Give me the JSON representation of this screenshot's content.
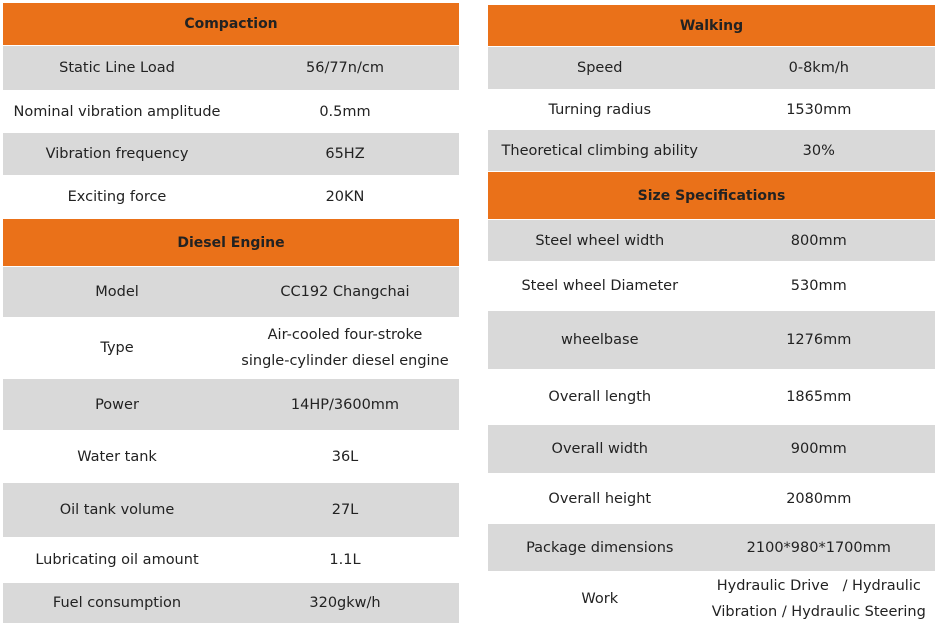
{
  "columns": [
    {
      "sections": [
        {
          "title": "Compaction",
          "rows": [
            [
              "Static Line Load",
              "56/77n/cm"
            ],
            [
              "Nominal vibration amplitude",
              "0.5mm"
            ],
            [
              "Vibration frequency",
              "65HZ"
            ],
            [
              "Exciting force",
              "20KN"
            ]
          ]
        },
        {
          "title": "Diesel Engine",
          "rows": [
            [
              "Model",
              "CC192 Changchai"
            ],
            [
              "Type",
              [
                "Air-cooled four-stroke",
                "single-cylinder diesel engine"
              ]
            ],
            [
              "Power",
              "14HP/3600mm"
            ],
            [
              "Water tank",
              "36L"
            ],
            [
              "Oil tank volume",
              "27L"
            ],
            [
              "Lubricating oil amount",
              "1.1L"
            ],
            [
              "Fuel consumption",
              "320gkw/h"
            ]
          ]
        }
      ]
    },
    {
      "sections": [
        {
          "title": "Walking",
          "rows": [
            [
              "Speed",
              "0-8km/h"
            ],
            [
              "Turning radius",
              "1530mm"
            ],
            [
              "Theoretical climbing ability",
              "30%"
            ]
          ]
        },
        {
          "title": "Size Specifications",
          "rows": [
            [
              "Steel wheel width",
              "800mm"
            ],
            [
              "Steel wheel Diameter",
              "530mm"
            ],
            [
              "wheelbase",
              "1276mm"
            ],
            [
              "Overall length",
              "1865mm"
            ],
            [
              "Overall width",
              "900mm"
            ],
            [
              "Overall height",
              "2080mm"
            ],
            [
              "Package dimensions",
              "2100*980*1700mm"
            ],
            [
              "Work",
              [
                "Hydraulic Drive   / Hydraulic",
                "Vibration / Hydraulic Steering"
              ]
            ]
          ]
        }
      ]
    }
  ]
}
